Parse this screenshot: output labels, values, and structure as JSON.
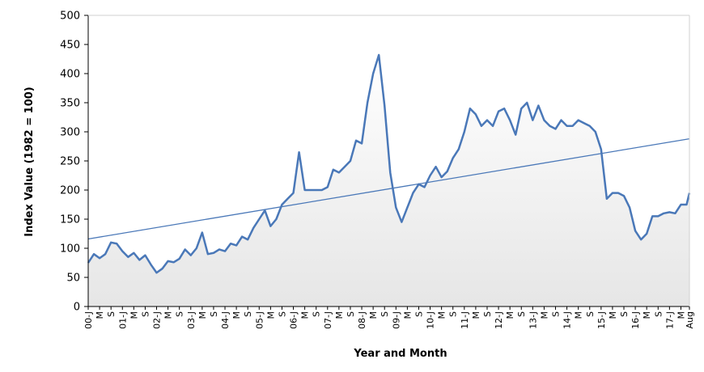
{
  "chart_data": {
    "type": "area",
    "xlabel": "Year and Month",
    "ylabel": "Index Value (1982 = 100)",
    "ylim": [
      0,
      500
    ],
    "y_ticks": [
      0,
      50,
      100,
      150,
      200,
      250,
      300,
      350,
      400,
      450,
      500
    ],
    "x_range_months": "2000-01 to 2017-08",
    "x_tick_labels": [
      "00-J",
      "M",
      "S",
      "01-J",
      "M",
      "S",
      "02-J",
      "M",
      "S",
      "03-J",
      "M",
      "S",
      "04-J",
      "M",
      "S",
      "05-J",
      "M",
      "S",
      "06-J",
      "M",
      "S",
      "07-J",
      "M",
      "S",
      "08-J",
      "M",
      "S",
      "09-J",
      "M",
      "S",
      "10-J",
      "M",
      "S",
      "11-J",
      "M",
      "S",
      "12-J",
      "M",
      "S",
      "13-J",
      "M",
      "S",
      "14-J",
      "M",
      "S",
      "15-J",
      "M",
      "S",
      "16-J",
      "M",
      "S",
      "17-J",
      "M",
      "Aug"
    ],
    "grid": false,
    "legend": "none",
    "fill_color": "#e6e6e6",
    "line_color": "#4a78b8",
    "trend_color": "#4a78b8",
    "series": [
      {
        "type": "area",
        "x": [
          "2000-01",
          "2000-03",
          "2000-05",
          "2000-07",
          "2000-09",
          "2000-11",
          "2001-01",
          "2001-03",
          "2001-05",
          "2001-07",
          "2001-09",
          "2001-11",
          "2002-01",
          "2002-03",
          "2002-05",
          "2002-07",
          "2002-09",
          "2002-11",
          "2003-01",
          "2003-03",
          "2003-05",
          "2003-07",
          "2003-09",
          "2003-11",
          "2004-01",
          "2004-03",
          "2004-05",
          "2004-07",
          "2004-09",
          "2004-11",
          "2005-01",
          "2005-03",
          "2005-05",
          "2005-07",
          "2005-09",
          "2005-11",
          "2006-01",
          "2006-03",
          "2006-05",
          "2006-07",
          "2006-09",
          "2006-11",
          "2007-01",
          "2007-03",
          "2007-05",
          "2007-07",
          "2007-09",
          "2007-11",
          "2008-01",
          "2008-03",
          "2008-05",
          "2008-07",
          "2008-09",
          "2008-11",
          "2009-01",
          "2009-03",
          "2009-05",
          "2009-07",
          "2009-09",
          "2009-11",
          "2010-01",
          "2010-03",
          "2010-05",
          "2010-07",
          "2010-09",
          "2010-11",
          "2011-01",
          "2011-03",
          "2011-05",
          "2011-07",
          "2011-09",
          "2011-11",
          "2012-01",
          "2012-03",
          "2012-05",
          "2012-07",
          "2012-09",
          "2012-11",
          "2013-01",
          "2013-03",
          "2013-05",
          "2013-07",
          "2013-09",
          "2013-11",
          "2014-01",
          "2014-03",
          "2014-05",
          "2014-07",
          "2014-09",
          "2014-11",
          "2015-01",
          "2015-03",
          "2015-05",
          "2015-07",
          "2015-09",
          "2015-11",
          "2016-01",
          "2016-03",
          "2016-05",
          "2016-07",
          "2016-09",
          "2016-11",
          "2017-01",
          "2017-03",
          "2017-05",
          "2017-07",
          "2017-08"
        ],
        "values": [
          75,
          90,
          83,
          90,
          110,
          108,
          95,
          85,
          92,
          80,
          88,
          72,
          58,
          65,
          78,
          76,
          82,
          98,
          88,
          100,
          127,
          90,
          92,
          98,
          95,
          108,
          105,
          120,
          115,
          135,
          150,
          165,
          138,
          150,
          175,
          185,
          195,
          265,
          200,
          200,
          200,
          200,
          205,
          235,
          230,
          240,
          250,
          285,
          280,
          350,
          400,
          432,
          345,
          230,
          170,
          145,
          170,
          195,
          210,
          205,
          225,
          240,
          222,
          232,
          255,
          270,
          300,
          340,
          330,
          310,
          320,
          310,
          335,
          340,
          320,
          295,
          340,
          350,
          320,
          345,
          320,
          310,
          305,
          320,
          310,
          310,
          320,
          315,
          310,
          300,
          270,
          185,
          195,
          195,
          190,
          170,
          130,
          115,
          125,
          155,
          155,
          160,
          162,
          160,
          175,
          175,
          195
        ]
      },
      {
        "type": "line",
        "name": "trend",
        "x": [
          "2000-01",
          "2017-08"
        ],
        "values": [
          116,
          288
        ]
      }
    ]
  }
}
